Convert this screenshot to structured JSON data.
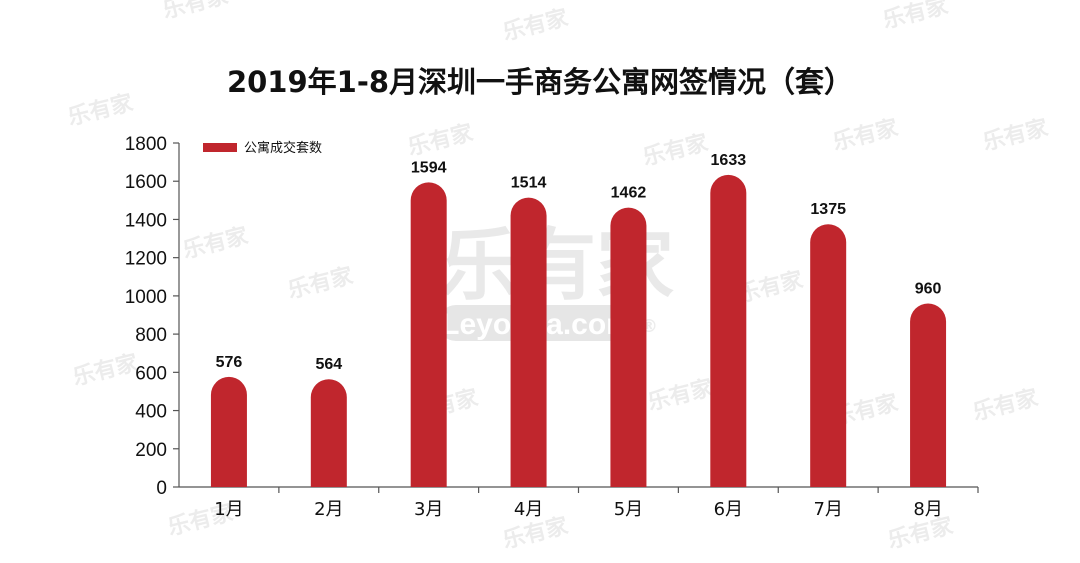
{
  "chart_data": {
    "type": "bar",
    "title": "2019年1-8月深圳一手商务公寓网签情况（套）",
    "categories": [
      "1月",
      "2月",
      "3月",
      "4月",
      "5月",
      "6月",
      "7月",
      "8月"
    ],
    "series": [
      {
        "name": "公寓成交套数",
        "values": [
          576,
          564,
          1594,
          1514,
          1462,
          1633,
          1375,
          960
        ]
      }
    ],
    "ylim": [
      0,
      1800
    ],
    "yticks": [
      0,
      200,
      400,
      600,
      800,
      1000,
      1200,
      1400,
      1600,
      1800
    ],
    "grid": false,
    "legend": "top-left",
    "bar_color": "#c0262d"
  },
  "watermark": {
    "brand": "乐有家",
    "url": "Leyoujia.com",
    "mark": "®"
  }
}
